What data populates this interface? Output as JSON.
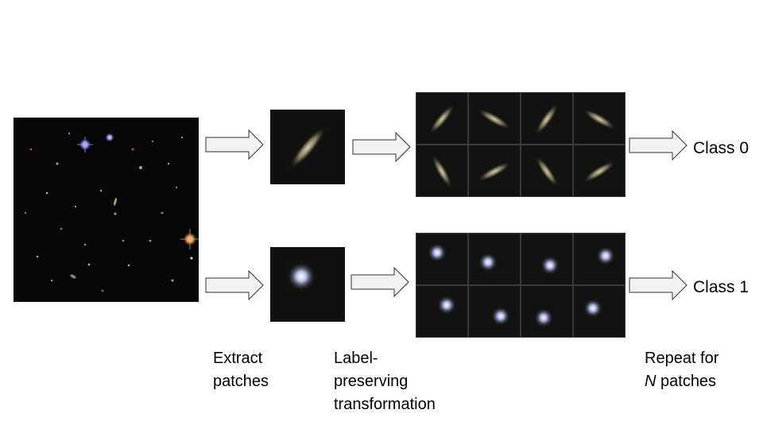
{
  "steps": {
    "extract": [
      "Extract",
      "patches"
    ],
    "transform": [
      "Label-",
      "preserving",
      "transformation"
    ],
    "repeat": {
      "prefix": "",
      "n": "N",
      "suffix": " patches",
      "line1": "Repeat for"
    }
  },
  "classes": {
    "class0": "Class 0",
    "class1": "Class 1"
  },
  "galaxy_tiles": {
    "elliptical_angles_deg": [
      -50,
      -30,
      -50,
      -30,
      -60,
      -28,
      -55,
      -32
    ]
  },
  "colors": {
    "arrow_fill": "#f2f2f2",
    "arrow_stroke": "#333333",
    "background": "#ffffff"
  }
}
